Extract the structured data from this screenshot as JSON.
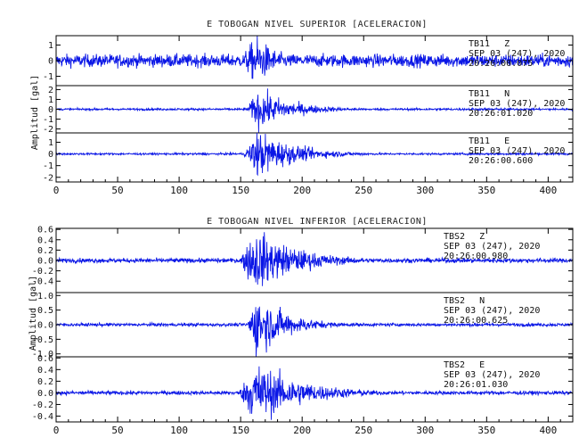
{
  "chart_data": [
    {
      "type": "line",
      "title": "E TOBOGAN NIVEL SUPERIOR [ACELERACION]",
      "ylabel": "Amplitud [gal]",
      "xlim": [
        0,
        420
      ],
      "x_ticks": [
        0,
        50,
        100,
        150,
        200,
        250,
        300,
        350,
        400
      ],
      "color": "#0a16e6",
      "traces": [
        {
          "name": "TB11 Z",
          "label_station": "TB11",
          "label_comp": "Z",
          "date": "SEP 03 (247), 2020",
          "time": "20:26:00.075",
          "ylim": [
            -1.6,
            1.6
          ],
          "y_ticks": [
            1,
            0,
            -1
          ],
          "y_tick_labels": [
            "1",
            "0",
            "-1"
          ],
          "noise": 0.38,
          "onset": 148,
          "peak": 163,
          "peak_amp": 1.45,
          "coda": 18
        },
        {
          "name": "TB11 N",
          "label_station": "TB11",
          "label_comp": "N",
          "date": "SEP 03 (247), 2020",
          "time": "20:26:01.020",
          "ylim": [
            -2.4,
            2.4
          ],
          "y_ticks": [
            2,
            1,
            0,
            -1,
            -2
          ],
          "y_tick_labels": [
            "2",
            "1",
            "0",
            "-1",
            "-2"
          ],
          "noise": 0.1,
          "onset": 155,
          "peak": 164,
          "peak_amp": 1.9,
          "coda": 28
        },
        {
          "name": "TB11 E",
          "label_station": "TB11",
          "label_comp": "E",
          "date": "SEP 03 (247), 2020",
          "time": "20:26:00.600",
          "ylim": [
            -2.4,
            1.8
          ],
          "y_ticks": [
            1,
            0,
            -1,
            -2
          ],
          "y_tick_labels": [
            "1",
            "0",
            "-1",
            "-2"
          ],
          "noise": 0.08,
          "onset": 152,
          "peak": 164,
          "peak_amp": 1.9,
          "coda": 30
        }
      ]
    },
    {
      "type": "line",
      "title": "E TOBOGAN NIVEL INFERIOR [ACELERACION]",
      "ylabel": "Amplitud [gal]",
      "xlim": [
        0,
        420
      ],
      "x_ticks": [
        0,
        50,
        100,
        150,
        200,
        250,
        300,
        350,
        400
      ],
      "color": "#0a16e6",
      "traces": [
        {
          "name": "TBS2 Z",
          "label_station": "TBS2",
          "label_comp": "Z",
          "date": "SEP 03 (247), 2020",
          "time": "20:26:00.980",
          "ylim": [
            -0.62,
            0.62
          ],
          "y_ticks": [
            0.6,
            0.4,
            0.2,
            0.0,
            -0.2,
            -0.4
          ],
          "y_tick_labels": [
            "0.6",
            "0.4",
            "0.2",
            "0.0",
            "-0.2",
            "-0.4"
          ],
          "noise": 0.04,
          "onset": 148,
          "peak": 162,
          "peak_amp": 0.55,
          "coda": 35
        },
        {
          "name": "TBS2 N",
          "label_station": "TBS2",
          "label_comp": "N",
          "date": "SEP 03 (247), 2020",
          "time": "20:26:00.625",
          "ylim": [
            -1.1,
            1.1
          ],
          "y_ticks": [
            1.0,
            0.5,
            0.0,
            -0.5,
            -1.0
          ],
          "y_tick_labels": [
            "1.0",
            "0.5",
            "0.0",
            "-0.5",
            "-1.0"
          ],
          "noise": 0.05,
          "onset": 155,
          "peak": 163,
          "peak_amp": 1.0,
          "coda": 25
        },
        {
          "name": "TBS2 E",
          "label_station": "TBS2",
          "label_comp": "E",
          "date": "SEP 03 (247), 2020",
          "time": "20:26:01.030",
          "ylim": [
            -0.5,
            0.62
          ],
          "y_ticks": [
            0.6,
            0.4,
            0.2,
            0.0,
            -0.2,
            -0.4
          ],
          "y_tick_labels": [
            "0.6",
            "0.4",
            "0.2",
            "0.0",
            "-0.2",
            "-0.4"
          ],
          "noise": 0.03,
          "onset": 148,
          "peak": 162,
          "peak_amp": 0.5,
          "coda": 38
        }
      ]
    }
  ]
}
